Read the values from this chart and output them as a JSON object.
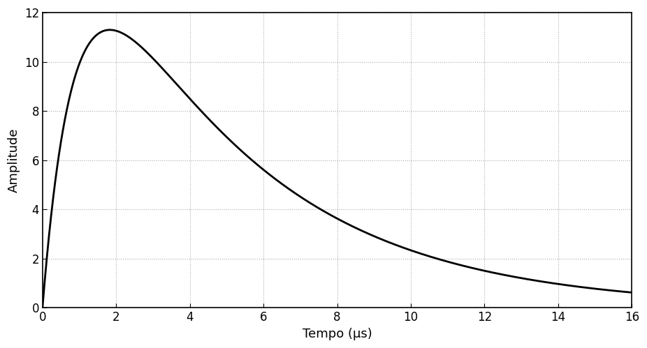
{
  "title": "",
  "xlabel": "Tempo (μs)",
  "ylabel": "Amplitude",
  "xlim": [
    0,
    16
  ],
  "ylim": [
    0,
    12
  ],
  "xticks": [
    0,
    2,
    4,
    6,
    8,
    10,
    12,
    14,
    16
  ],
  "yticks": [
    0,
    2,
    4,
    6,
    8,
    10,
    12
  ],
  "line_color": "#000000",
  "line_width": 2.0,
  "background_color": "#ffffff",
  "grid_color": "#aaaaaa",
  "grid_linestyle": "dotted",
  "alpha1": 1.1,
  "alpha2": 0.22,
  "amplitude": 11.3,
  "xlabel_fontsize": 13,
  "ylabel_fontsize": 13,
  "tick_fontsize": 12
}
